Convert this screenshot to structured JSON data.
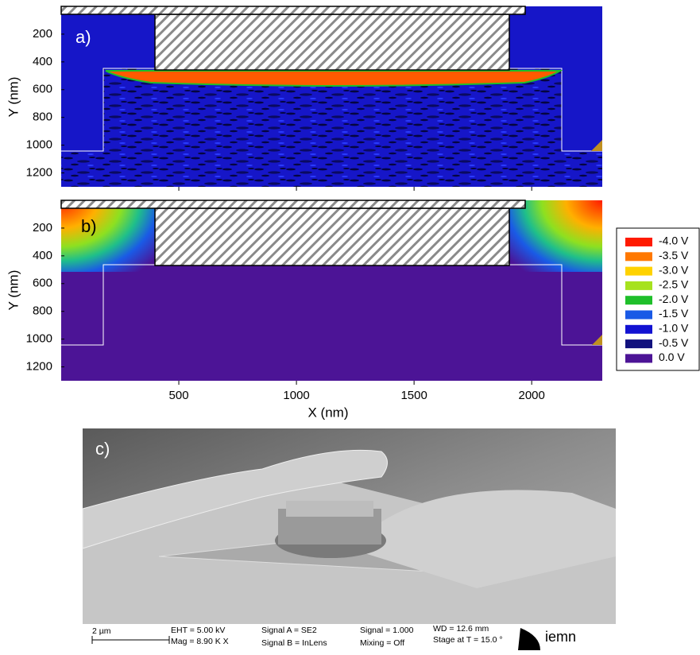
{
  "panels": [
    {
      "label": "a)"
    },
    {
      "label": "b)"
    }
  ],
  "axes": {
    "x_label": "X (nm)",
    "y_label": "Y (nm)",
    "xlim": [
      0,
      2300
    ],
    "xticks": [
      500,
      1000,
      1500,
      2000
    ],
    "ylim": [
      0,
      1300
    ],
    "yticks": [
      200,
      400,
      600,
      800,
      1000,
      1200
    ]
  },
  "legend": [
    {
      "label": "-4.0 V",
      "color": "#ff1a00"
    },
    {
      "label": "-3.5 V",
      "color": "#ff7800"
    },
    {
      "label": "-3.0 V",
      "color": "#ffd200"
    },
    {
      "label": "-2.5 V",
      "color": "#a6e21e"
    },
    {
      "label": "-2.0 V",
      "color": "#1fbf2a"
    },
    {
      "label": "-1.5 V",
      "color": "#1a5ae6"
    },
    {
      "label": "-1.0 V",
      "color": "#1212d2"
    },
    {
      "label": "-0.5 V",
      "color": "#12127e"
    },
    {
      "label": "0.0 V",
      "color": "#4c1496"
    }
  ],
  "sem": {
    "label": "c)",
    "scale_bar": "2 µm",
    "eht": "EHT = 5.00 kV",
    "mag": "Mag =  8.90 K X",
    "signal_a": "Signal A = SE2",
    "signal_b": "Signal B = InLens",
    "signal": "Signal = 1.000",
    "mixing": "Mixing = Off",
    "wd": "WD = 12.6 mm",
    "stage": "Stage at T =  15.0 °",
    "logo": "iemn"
  }
}
